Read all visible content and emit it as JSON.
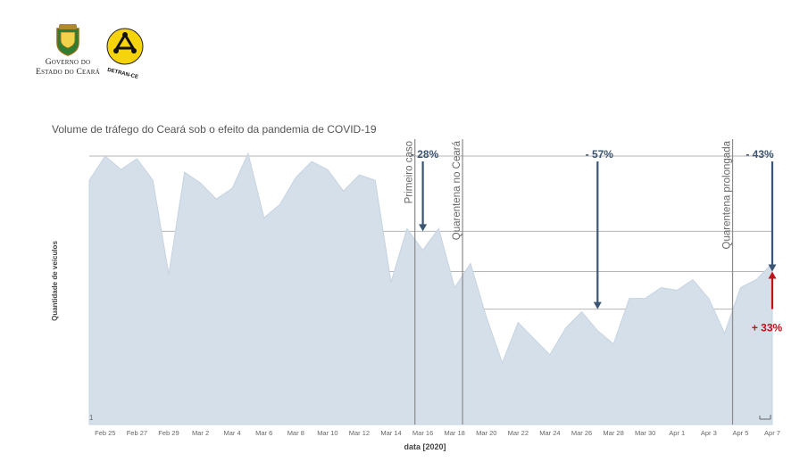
{
  "header": {
    "gov_line1": "Governo do",
    "gov_line2": "Estado do Ceará",
    "detran_text": "DETRAN-CE"
  },
  "chart_data": {
    "type": "area",
    "title": "Volume de tráfego do Ceará sob o efeito da pandemia de COVID-19",
    "xlabel": "data [2020]",
    "ylabel": "Quantidade de veículos",
    "x_dates": [
      "2020-02-24",
      "2020-02-25",
      "2020-02-26",
      "2020-02-27",
      "2020-02-28",
      "2020-02-29",
      "2020-03-01",
      "2020-03-02",
      "2020-03-03",
      "2020-03-04",
      "2020-03-05",
      "2020-03-06",
      "2020-03-07",
      "2020-03-08",
      "2020-03-09",
      "2020-03-10",
      "2020-03-11",
      "2020-03-12",
      "2020-03-13",
      "2020-03-14",
      "2020-03-15",
      "2020-03-16",
      "2020-03-17",
      "2020-03-18",
      "2020-03-19",
      "2020-03-20",
      "2020-03-21",
      "2020-03-22",
      "2020-03-23",
      "2020-03-24",
      "2020-03-25",
      "2020-03-26",
      "2020-03-27",
      "2020-03-28",
      "2020-03-29",
      "2020-03-30",
      "2020-03-31",
      "2020-04-01",
      "2020-04-02",
      "2020-04-03",
      "2020-04-04",
      "2020-04-05",
      "2020-04-06",
      "2020-04-07"
    ],
    "values": [
      91,
      100,
      95,
      99,
      91,
      56,
      94,
      90,
      84,
      88,
      101,
      77,
      82,
      92,
      98,
      95,
      87,
      93,
      91,
      53,
      73,
      65,
      73,
      51,
      60,
      40,
      23,
      38,
      32,
      26,
      36,
      42,
      35,
      30,
      47,
      47,
      51,
      50,
      54,
      47,
      34,
      51,
      54,
      60
    ],
    "ylim": [
      0,
      105
    ],
    "tick_labels": [
      "Feb 25",
      "Feb 27",
      "Feb 29",
      "Mar 2",
      "Mar 4",
      "Mar 6",
      "Mar 8",
      "Mar 10",
      "Mar 12",
      "Mar 14",
      "Mar 16",
      "Mar 18",
      "Mar 20",
      "Mar 22",
      "Mar 24",
      "Mar 26",
      "Mar 28",
      "Mar 30",
      "Apr 1",
      "Apr 3",
      "Apr 5",
      "Apr 7"
    ],
    "tick_dates": [
      "2020-02-25",
      "2020-02-27",
      "2020-02-29",
      "2020-03-02",
      "2020-03-04",
      "2020-03-06",
      "2020-03-08",
      "2020-03-10",
      "2020-03-12",
      "2020-03-14",
      "2020-03-16",
      "2020-03-18",
      "2020-03-20",
      "2020-03-22",
      "2020-03-24",
      "2020-03-26",
      "2020-03-28",
      "2020-03-30",
      "2020-04-01",
      "2020-04-03",
      "2020-04-05",
      "2020-04-07"
    ],
    "reference_y_values": [
      100,
      72,
      57,
      43
    ],
    "events": [
      {
        "label": "Primeiro caso",
        "date": "2020-03-15"
      },
      {
        "label": "Quarentena no Ceará",
        "date": "2020-03-18"
      },
      {
        "label": "Quarentena prolongada",
        "date": "2020-04-04"
      }
    ],
    "annotations": [
      {
        "text": "- 28%",
        "date": "2020-03-16",
        "from_y": 100,
        "to_y": 72,
        "direction": "down",
        "color": "#3b5573"
      },
      {
        "text": "- 57%",
        "date": "2020-03-27",
        "from_y": 100,
        "to_y": 43,
        "direction": "down",
        "color": "#3b5573"
      },
      {
        "text": "- 43%",
        "date": "2020-04-07",
        "from_y": 100,
        "to_y": 57,
        "direction": "down",
        "color": "#3b5573"
      },
      {
        "text": "+ 33%",
        "date": "2020-04-07",
        "from_y": 43,
        "to_y": 57,
        "direction": "up",
        "color": "#c0121a"
      }
    ],
    "corner_label": "1",
    "area_color": "#d5dfea",
    "area_line_color": "#c6d3e1"
  }
}
